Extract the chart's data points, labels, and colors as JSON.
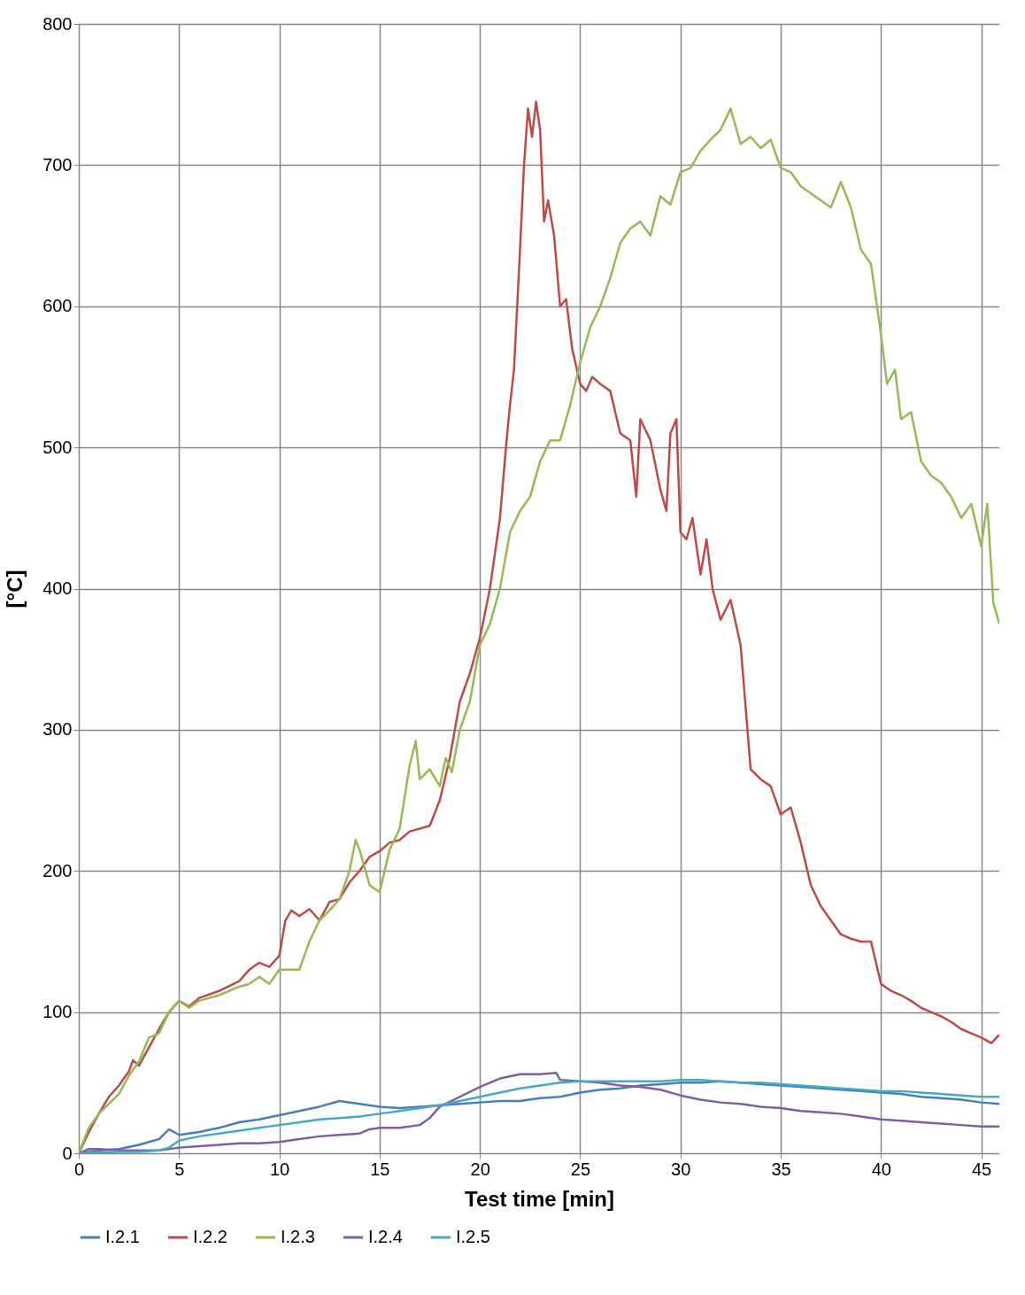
{
  "chart_data": {
    "type": "line",
    "xlabel": "Test time [min]",
    "ylabel": "[°C]",
    "xlim": [
      0,
      45.9
    ],
    "ylim": [
      0,
      800
    ],
    "xticks": [
      0,
      5,
      10,
      15,
      20,
      25,
      30,
      35,
      40,
      45
    ],
    "yticks": [
      0,
      100,
      200,
      300,
      400,
      500,
      600,
      700,
      800
    ],
    "grid": true,
    "legend": "bottom",
    "marker": "none",
    "line_style": "solid",
    "series": [
      {
        "name": "I.2.1",
        "color": "#4a7ebb",
        "x": [
          0,
          1,
          2,
          3,
          4,
          4.5,
          5,
          6,
          7,
          8,
          9,
          10,
          11,
          12,
          13,
          14,
          15,
          16,
          17,
          18,
          19,
          20,
          21,
          22,
          23,
          24,
          25,
          26,
          27,
          28,
          29,
          30,
          31,
          32,
          33,
          34,
          35,
          36,
          37,
          38,
          39,
          40,
          41,
          42,
          43,
          44,
          45,
          45.9
        ],
        "values": [
          0,
          2,
          3,
          6,
          10,
          17,
          13,
          15,
          18,
          22,
          24,
          27,
          30,
          33,
          37,
          35,
          33,
          32,
          33,
          34,
          35,
          36,
          37,
          37,
          39,
          40,
          43,
          45,
          46,
          48,
          49,
          50,
          50,
          51,
          50,
          49,
          48,
          47,
          46,
          45,
          44,
          43,
          42,
          40,
          39,
          38,
          36,
          35
        ]
      },
      {
        "name": "I.2.2",
        "color": "#be4b48",
        "x": [
          0,
          0.5,
          1,
          1.5,
          2,
          2.5,
          2.7,
          3,
          3.5,
          4,
          4.5,
          5,
          5.5,
          6,
          7,
          8,
          8.5,
          9,
          9.5,
          10,
          10.3,
          10.6,
          11,
          11.5,
          12,
          12.5,
          13,
          13.5,
          14,
          14.5,
          15,
          15.5,
          16,
          16.5,
          17,
          17.5,
          18,
          18.5,
          19,
          19.5,
          20,
          20.5,
          21,
          21.3,
          21.5,
          21.7,
          22,
          22.2,
          22.4,
          22.6,
          22.8,
          23,
          23.2,
          23.4,
          23.7,
          24,
          24.3,
          24.6,
          25,
          25.3,
          25.6,
          26,
          26.5,
          27,
          27.5,
          27.8,
          28,
          28.5,
          29,
          29.3,
          29.5,
          29.8,
          30,
          30.3,
          30.6,
          31,
          31.3,
          31.6,
          32,
          32.5,
          33,
          33.5,
          34,
          34.5,
          35,
          35.5,
          36,
          36.5,
          37,
          37.5,
          38,
          38.5,
          39,
          39.5,
          40,
          40.5,
          41,
          41.5,
          42,
          42.5,
          43,
          43.5,
          44,
          44.5,
          45,
          45.5,
          45.9
        ],
        "values": [
          0,
          15,
          28,
          40,
          48,
          58,
          66,
          62,
          75,
          88,
          100,
          108,
          104,
          110,
          115,
          122,
          130,
          135,
          132,
          140,
          165,
          172,
          168,
          173,
          165,
          178,
          180,
          192,
          200,
          210,
          214,
          220,
          222,
          228,
          230,
          232,
          250,
          280,
          320,
          340,
          365,
          400,
          450,
          500,
          530,
          555,
          640,
          700,
          740,
          720,
          745,
          725,
          660,
          675,
          650,
          600,
          605,
          570,
          545,
          540,
          550,
          545,
          540,
          510,
          505,
          465,
          520,
          505,
          470,
          455,
          510,
          520,
          440,
          435,
          450,
          410,
          435,
          400,
          378,
          392,
          360,
          272,
          265,
          260,
          240,
          245,
          220,
          190,
          175,
          165,
          155,
          152,
          150,
          150,
          120,
          115,
          112,
          108,
          103,
          100,
          97,
          93,
          88,
          85,
          82,
          78,
          84
        ]
      },
      {
        "name": "I.2.3",
        "color": "#98b954",
        "x": [
          0,
          0.5,
          1,
          1.5,
          2,
          2.5,
          3,
          3.5,
          4,
          4.5,
          5,
          5.5,
          6,
          7,
          8,
          8.5,
          9,
          9.5,
          10,
          11,
          11.5,
          12,
          12.5,
          13,
          13.5,
          13.8,
          14,
          14.5,
          15,
          15.5,
          16,
          16.5,
          16.8,
          17,
          17.5,
          18,
          18.3,
          18.6,
          19,
          19.5,
          20,
          20.5,
          21,
          21.5,
          22,
          22.5,
          23,
          23.5,
          24,
          24.5,
          25,
          25.5,
          26,
          26.5,
          27,
          27.5,
          28,
          28.5,
          29,
          29.5,
          30,
          30.5,
          31,
          31.5,
          32,
          32.5,
          33,
          33.5,
          34,
          34.5,
          35,
          35.5,
          36,
          36.5,
          37,
          37.5,
          38,
          38.5,
          39,
          39.5,
          40,
          40.3,
          40.7,
          41,
          41.5,
          42,
          42.5,
          43,
          43.5,
          44,
          44.5,
          45,
          45.3,
          45.6,
          45.9
        ],
        "values": [
          0,
          18,
          28,
          35,
          42,
          55,
          65,
          82,
          85,
          100,
          108,
          103,
          108,
          112,
          118,
          120,
          125,
          120,
          130,
          130,
          150,
          165,
          172,
          180,
          200,
          222,
          215,
          190,
          185,
          215,
          230,
          275,
          292,
          265,
          272,
          260,
          280,
          270,
          300,
          320,
          360,
          375,
          400,
          440,
          455,
          465,
          490,
          505,
          505,
          530,
          560,
          585,
          600,
          620,
          645,
          655,
          660,
          650,
          678,
          672,
          695,
          698,
          710,
          718,
          725,
          740,
          715,
          720,
          712,
          718,
          698,
          695,
          685,
          680,
          675,
          670,
          688,
          670,
          640,
          630,
          580,
          545,
          555,
          520,
          525,
          490,
          480,
          475,
          465,
          450,
          460,
          430,
          460,
          390,
          375
        ]
      },
      {
        "name": "I.2.4",
        "color": "#7d60a0",
        "x": [
          0,
          0.5,
          1,
          2,
          3,
          4,
          5,
          6,
          7,
          8,
          9,
          10,
          11,
          12,
          13,
          14,
          14.5,
          15,
          16,
          17,
          17.5,
          18,
          19,
          20,
          21,
          22,
          23,
          23.8,
          24,
          25,
          26,
          27,
          28,
          29,
          30,
          31,
          32,
          33,
          34,
          35,
          36,
          37,
          38,
          39,
          40,
          41,
          42,
          43,
          44,
          45,
          45.9
        ],
        "values": [
          0,
          3,
          3,
          2,
          2,
          2,
          4,
          5,
          6,
          7,
          7,
          8,
          10,
          12,
          13,
          14,
          17,
          18,
          18,
          20,
          25,
          33,
          40,
          47,
          53,
          56,
          56,
          57,
          52,
          51,
          50,
          48,
          47,
          45,
          41,
          38,
          36,
          35,
          33,
          32,
          30,
          29,
          28,
          26,
          24,
          23,
          22,
          21,
          20,
          19,
          19
        ]
      },
      {
        "name": "I.2.5",
        "color": "#46aac5",
        "x": [
          0,
          2,
          3,
          4,
          4.5,
          5,
          6,
          7,
          8,
          9,
          10,
          11,
          12,
          13,
          14,
          15,
          16,
          17,
          18,
          19,
          20,
          21,
          22,
          23,
          24,
          25,
          26,
          27,
          28,
          29,
          30,
          31,
          32,
          33,
          34,
          35,
          36,
          37,
          38,
          39,
          40,
          41,
          42,
          43,
          44,
          45,
          45.9
        ],
        "values": [
          0,
          1,
          1,
          2,
          4,
          9,
          12,
          14,
          16,
          18,
          20,
          22,
          24,
          25,
          26,
          28,
          30,
          32,
          34,
          37,
          40,
          43,
          46,
          48,
          50,
          51,
          51,
          51,
          51,
          51,
          52,
          52,
          51,
          50,
          50,
          49,
          48,
          47,
          46,
          45,
          44,
          44,
          43,
          42,
          41,
          40,
          40
        ]
      }
    ]
  }
}
